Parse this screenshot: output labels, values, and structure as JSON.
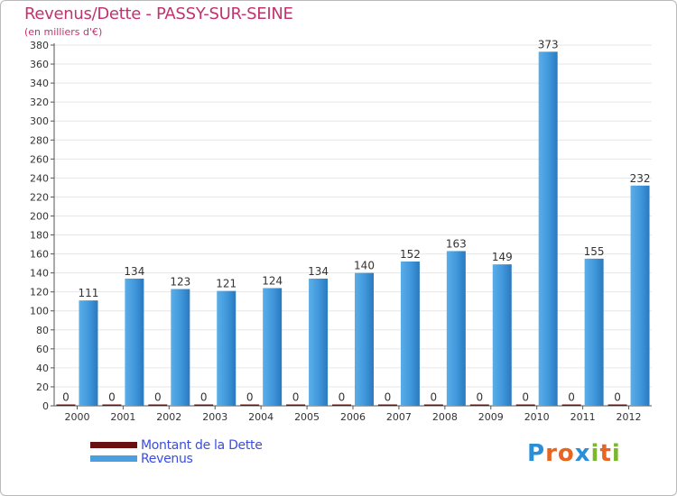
{
  "colors": {
    "revenus": "#4a9fe0",
    "revenus_dark": "#2b7cc2",
    "dette": "#6b1010",
    "title": "#c0336e",
    "legend_text": "#3a4de0"
  },
  "legend": {
    "items": [
      {
        "label": "Montant de la Dette",
        "color": "#6b1010"
      },
      {
        "label": "Revenus",
        "color": "#4a9fe0"
      }
    ]
  },
  "logo": {
    "letters": [
      "P",
      "r",
      "o",
      "x",
      "i",
      "t",
      "i"
    ],
    "colors": [
      "#2b8fd8",
      "#e8641f",
      "#e8641f",
      "#2b8fd8",
      "#7ab82e",
      "#e8641f",
      "#7ab82e"
    ]
  },
  "chart_data": {
    "type": "bar",
    "title": "Revenus/Dette - PASSY-SUR-SEINE",
    "subtitle": "(en milliers d'€)",
    "categories": [
      "2000",
      "2001",
      "2002",
      "2003",
      "2004",
      "2005",
      "2006",
      "2007",
      "2008",
      "2009",
      "2010",
      "2011",
      "2012"
    ],
    "series": [
      {
        "name": "Montant de la Dette",
        "values": [
          0,
          0,
          0,
          0,
          0,
          0,
          0,
          0,
          0,
          0,
          0,
          0,
          0
        ]
      },
      {
        "name": "Revenus",
        "values": [
          111,
          134,
          123,
          121,
          124,
          134,
          140,
          152,
          163,
          149,
          373,
          155,
          232
        ]
      }
    ],
    "yticks": [
      0,
      20,
      40,
      60,
      80,
      100,
      120,
      140,
      160,
      180,
      200,
      220,
      240,
      260,
      280,
      300,
      320,
      340,
      360,
      380
    ],
    "ylim": [
      0,
      380
    ],
    "grid": true,
    "legend_position": "bottom-left"
  }
}
